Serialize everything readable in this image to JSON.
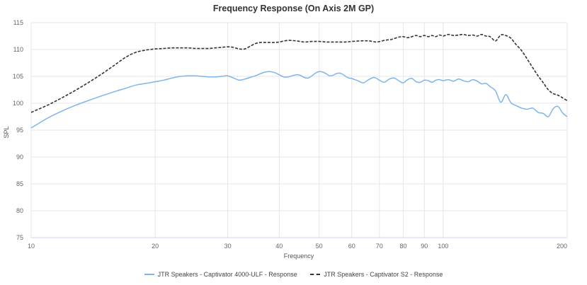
{
  "chart_data": {
    "type": "line",
    "title": "Frequency Response (On Axis 2M GP)",
    "xlabel": "Frequency",
    "ylabel": "SPL",
    "xscale": "log",
    "xlim": [
      10,
      200
    ],
    "ylim": [
      75,
      115
    ],
    "xticks": [
      10,
      20,
      30,
      40,
      50,
      60,
      70,
      80,
      90,
      100,
      200
    ],
    "xtick_labels": [
      "10",
      "20",
      "30",
      "40",
      "50",
      "60",
      "70",
      "80",
      "90",
      "100",
      "200"
    ],
    "yticks": [
      75,
      80,
      85,
      90,
      95,
      100,
      105,
      110,
      115
    ],
    "ytick_labels": [
      "75",
      "80",
      "85",
      "90",
      "95",
      "100",
      "105",
      "110",
      "115"
    ],
    "grid": true,
    "legend_position": "bottom",
    "series": [
      {
        "name": "JTR Speakers - Captivator 4000-ULF - Response",
        "style": "solid",
        "color": "#7cb5ec",
        "x": [
          10,
          11,
          12,
          13,
          14,
          15,
          16,
          17,
          18,
          19,
          20,
          21,
          22,
          23,
          24,
          25,
          26,
          27,
          28,
          29,
          30,
          31,
          32,
          33,
          34,
          35,
          36,
          37,
          38,
          39,
          40,
          41,
          42,
          43,
          44,
          45,
          46,
          47,
          48,
          49,
          50,
          51,
          52,
          53,
          54,
          55,
          56,
          57,
          58,
          59,
          60,
          62,
          64,
          66,
          68,
          70,
          72,
          74,
          76,
          78,
          80,
          82,
          84,
          86,
          88,
          90,
          92,
          94,
          96,
          98,
          100,
          103,
          106,
          109,
          112,
          115,
          118,
          121,
          124,
          127,
          130,
          134,
          138,
          142,
          146,
          150,
          155,
          160,
          165,
          170,
          175,
          180,
          185,
          190,
          195,
          200
        ],
        "y": [
          95.4,
          97.3,
          98.7,
          99.8,
          100.7,
          101.5,
          102.2,
          102.8,
          103.4,
          103.7,
          104.0,
          104.3,
          104.7,
          105.0,
          105.1,
          105.1,
          105.0,
          104.9,
          104.9,
          105.0,
          105.1,
          104.7,
          104.3,
          104.5,
          104.8,
          105.1,
          105.5,
          105.8,
          105.9,
          105.7,
          105.3,
          104.9,
          104.9,
          105.1,
          105.3,
          105.2,
          104.8,
          104.7,
          105.1,
          105.6,
          105.9,
          105.8,
          105.5,
          105.1,
          105.2,
          105.5,
          105.6,
          105.4,
          105.0,
          104.7,
          104.6,
          104.2,
          103.8,
          104.4,
          104.8,
          104.3,
          103.9,
          104.5,
          104.7,
          104.2,
          103.8,
          104.4,
          104.6,
          104.0,
          103.9,
          104.3,
          104.2,
          103.9,
          104.3,
          104.4,
          104.2,
          104.4,
          104.1,
          104.5,
          104.2,
          104.0,
          104.4,
          104.1,
          103.6,
          103.7,
          103.1,
          102.3,
          100.2,
          101.6,
          100.1,
          99.6,
          99.1,
          98.9,
          99.1,
          98.3,
          98.1,
          97.5,
          99.0,
          99.4,
          98.2,
          97.5
        ]
      },
      {
        "name": "JTR Speakers - Captivator S2 - Response",
        "style": "dashed",
        "color": "#333333",
        "x": [
          10,
          11,
          12,
          13,
          14,
          15,
          16,
          17,
          18,
          19,
          20,
          21,
          22,
          23,
          24,
          25,
          26,
          27,
          28,
          29,
          30,
          31,
          32,
          33,
          34,
          35,
          36,
          37,
          38,
          39,
          40,
          42,
          44,
          46,
          48,
          50,
          52,
          54,
          56,
          58,
          60,
          63,
          66,
          69,
          72,
          75,
          78,
          80,
          82,
          84,
          86,
          88,
          90,
          92,
          94,
          96,
          98,
          100,
          103,
          106,
          109,
          112,
          115,
          118,
          121,
          124,
          127,
          130,
          134,
          138,
          142,
          146,
          150,
          155,
          160,
          165,
          170,
          175,
          180,
          185,
          190,
          195,
          200
        ],
        "y": [
          98.3,
          99.7,
          101.2,
          102.7,
          104.2,
          105.7,
          107.2,
          108.6,
          109.5,
          109.9,
          110.1,
          110.2,
          110.3,
          110.3,
          110.3,
          110.2,
          110.2,
          110.2,
          110.3,
          110.4,
          110.5,
          110.4,
          110.1,
          110.1,
          110.6,
          111.1,
          111.3,
          111.3,
          111.3,
          111.3,
          111.4,
          111.7,
          111.6,
          111.4,
          111.5,
          111.5,
          111.4,
          111.4,
          111.4,
          111.4,
          111.5,
          111.6,
          111.6,
          111.4,
          111.7,
          111.9,
          112.3,
          112.4,
          112.2,
          112.4,
          112.6,
          112.4,
          112.6,
          112.4,
          112.6,
          112.4,
          112.7,
          112.5,
          112.8,
          112.6,
          112.7,
          112.8,
          112.6,
          112.7,
          112.5,
          112.8,
          112.5,
          112.4,
          111.6,
          112.7,
          112.6,
          112.1,
          111.0,
          109.8,
          108.2,
          106.6,
          105.1,
          103.8,
          102.5,
          101.8,
          101.5,
          101.0,
          100.5
        ]
      }
    ]
  }
}
